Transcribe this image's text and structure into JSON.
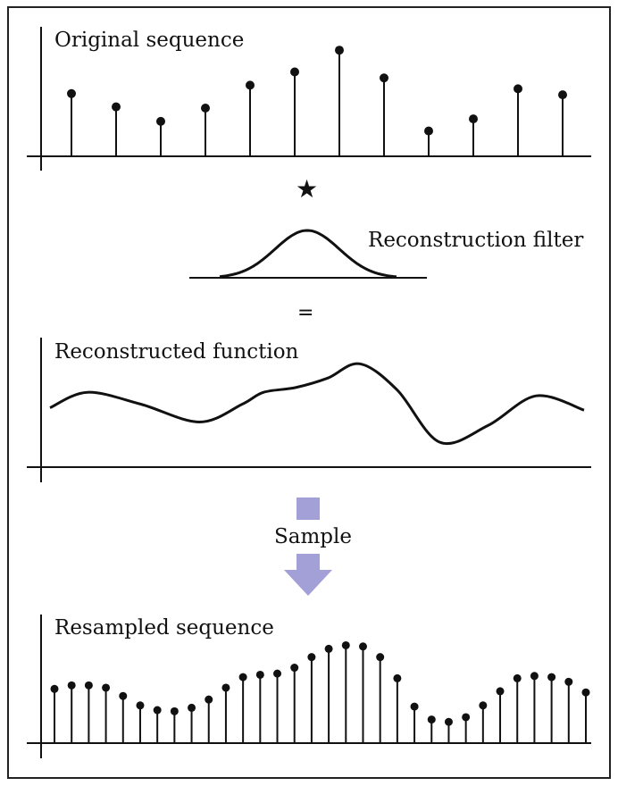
{
  "colors": {
    "ink": "#111111",
    "frame": "#222222",
    "arrow": "#a3a0d8"
  },
  "panels": {
    "original": {
      "title": "Original sequence",
      "samples": [
        0.52,
        0.41,
        0.29,
        0.4,
        0.59,
        0.7,
        0.88,
        0.65,
        0.21,
        0.31,
        0.56,
        0.51
      ]
    },
    "operator_convolve": "★",
    "filter": {
      "title": "Reconstruction filter",
      "shape": "gaussian"
    },
    "operator_equals": "=",
    "reconstructed": {
      "title": "Reconstructed function",
      "curve": [
        [
          0.0,
          0.5
        ],
        [
          0.07,
          0.63
        ],
        [
          0.17,
          0.53
        ],
        [
          0.28,
          0.38
        ],
        [
          0.36,
          0.53
        ],
        [
          0.4,
          0.63
        ],
        [
          0.46,
          0.67
        ],
        [
          0.52,
          0.75
        ],
        [
          0.58,
          0.87
        ],
        [
          0.65,
          0.65
        ],
        [
          0.73,
          0.21
        ],
        [
          0.82,
          0.35
        ],
        [
          0.91,
          0.6
        ],
        [
          1.0,
          0.48
        ]
      ]
    },
    "sample_arrow": {
      "label": "Sample"
    },
    "resampled": {
      "title": "Resampled sequence",
      "samples": [
        0.46,
        0.49,
        0.49,
        0.47,
        0.4,
        0.32,
        0.28,
        0.27,
        0.3,
        0.37,
        0.47,
        0.56,
        0.58,
        0.59,
        0.64,
        0.73,
        0.8,
        0.83,
        0.82,
        0.73,
        0.55,
        0.31,
        0.2,
        0.18,
        0.22,
        0.32,
        0.44,
        0.55,
        0.57,
        0.56,
        0.52,
        0.43
      ]
    }
  }
}
